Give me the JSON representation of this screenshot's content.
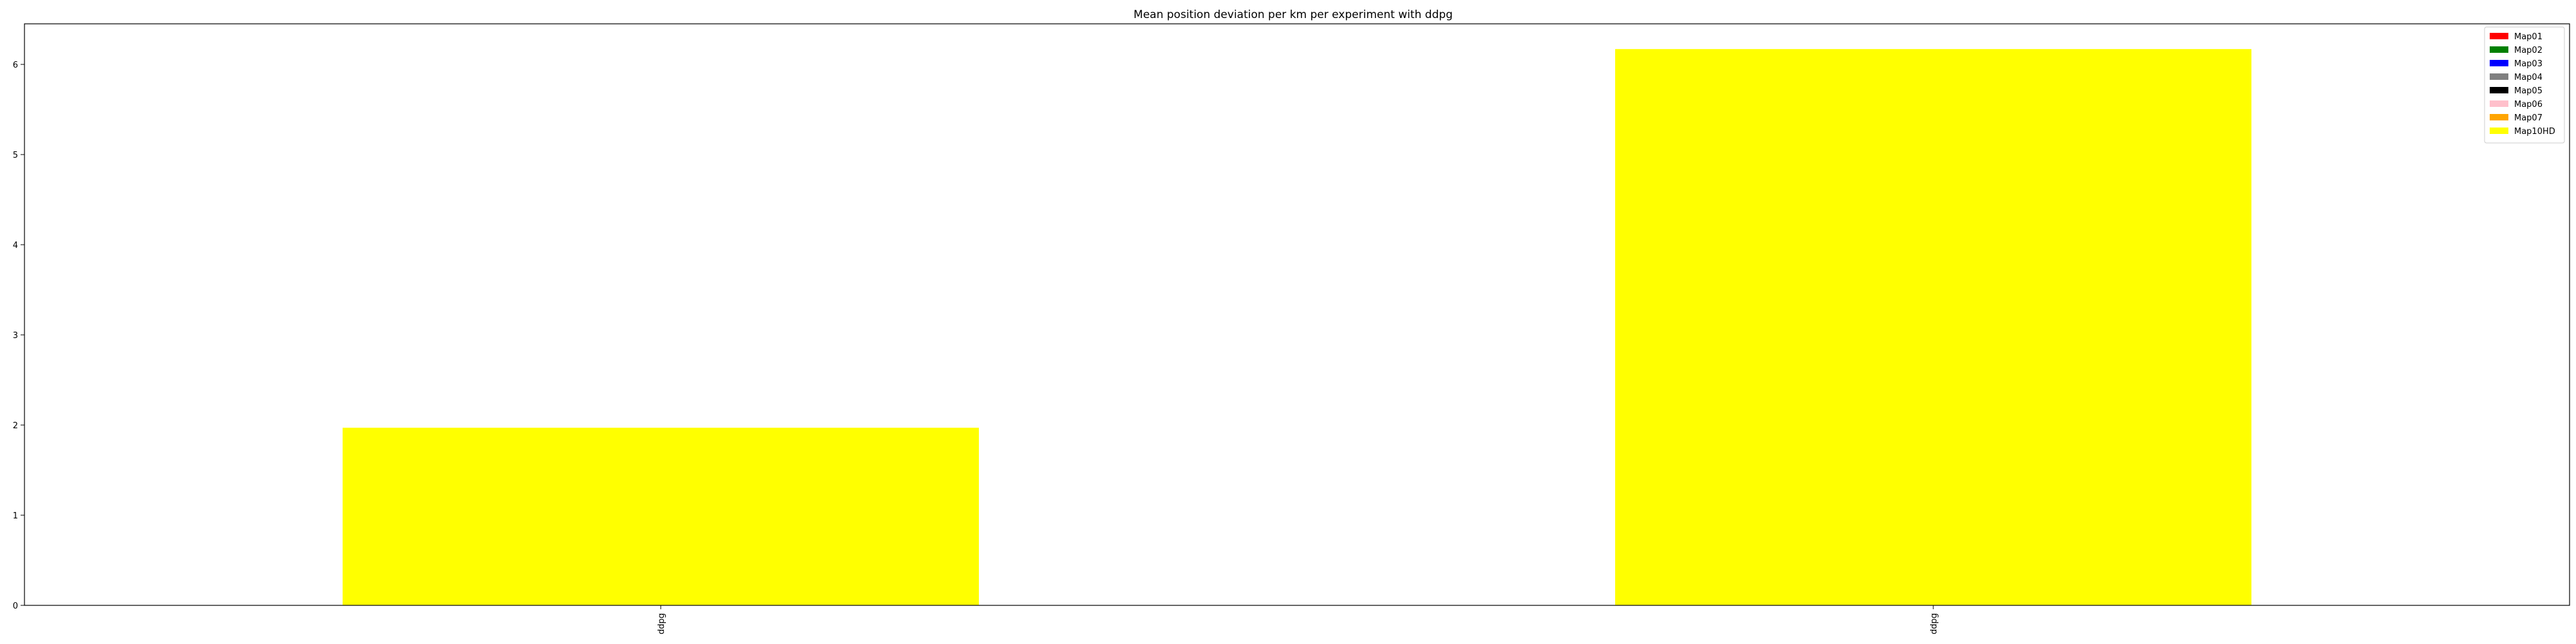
{
  "chart_data": {
    "type": "bar",
    "title": "Mean position deviation per km per experiment with ddpg",
    "xlabel": "",
    "ylabel": "",
    "categories": [
      "ddpg",
      "ddpg"
    ],
    "series": [
      {
        "name": "Map10HD",
        "color": "#ffff00",
        "values": [
          1.97,
          6.17
        ]
      }
    ],
    "ylim": [
      0,
      6.45
    ],
    "yticks": [
      0,
      1,
      2,
      3,
      4,
      5,
      6
    ],
    "grid": false,
    "legend": {
      "placement": "top-right",
      "entries": [
        {
          "label": "Map01",
          "color": "#ff0000"
        },
        {
          "label": "Map02",
          "color": "#008000"
        },
        {
          "label": "Map03",
          "color": "#0000ff"
        },
        {
          "label": "Map04",
          "color": "#808080"
        },
        {
          "label": "Map05",
          "color": "#000000"
        },
        {
          "label": "Map06",
          "color": "#ffc0cb"
        },
        {
          "label": "Map07",
          "color": "#ffa500"
        },
        {
          "label": "Map10HD",
          "color": "#ffff00"
        }
      ]
    }
  }
}
